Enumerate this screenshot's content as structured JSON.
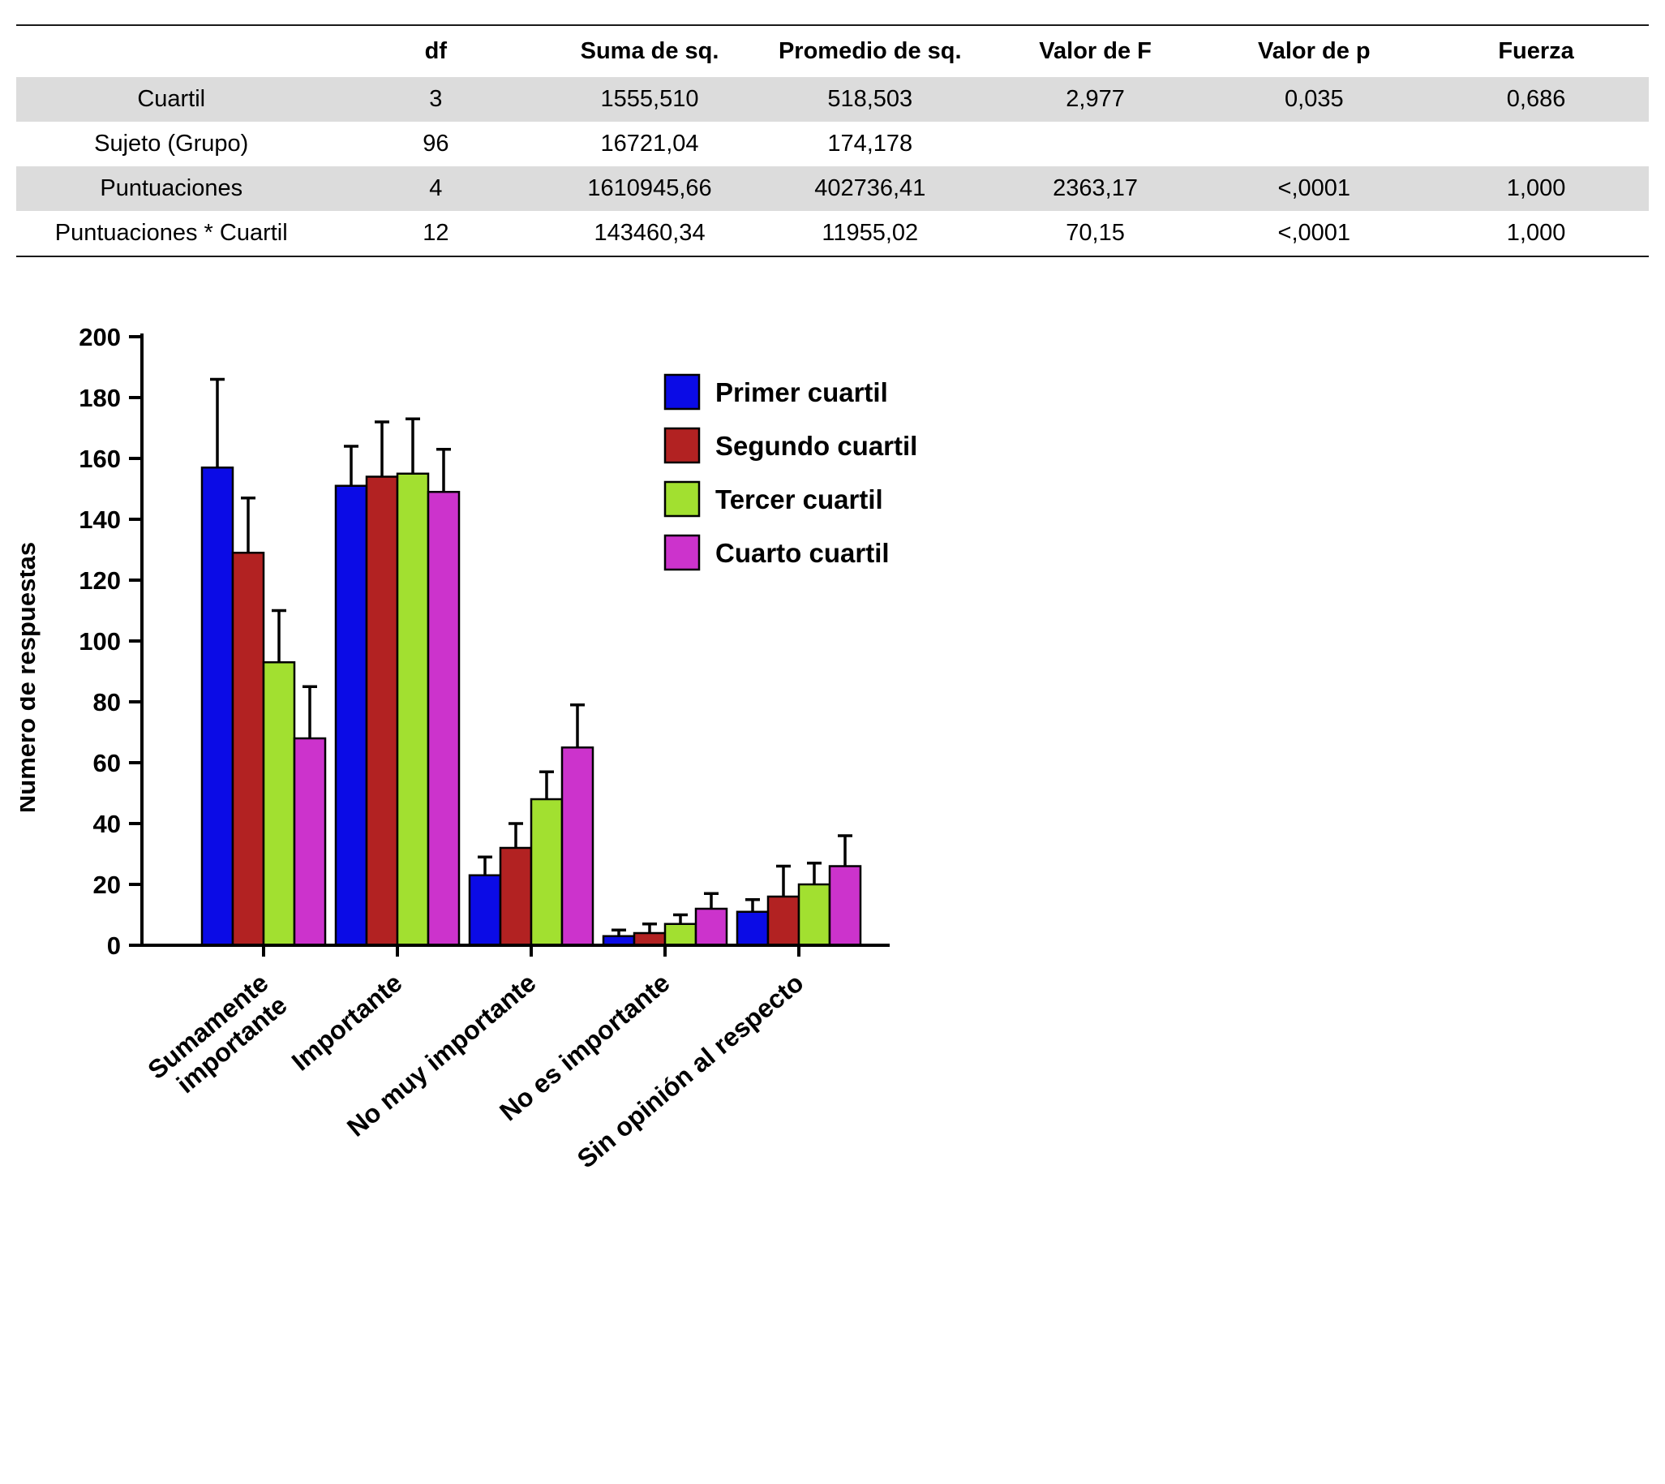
{
  "chart_data": [
    {
      "type": "table",
      "headers": [
        "",
        "df",
        "Suma de sq.",
        "Promedio de sq.",
        "Valor de F",
        "Valor de p",
        "Fuerza"
      ],
      "rows": [
        [
          "Cuartil",
          "3",
          "1555,510",
          "518,503",
          "2,977",
          "0,035",
          "0,686"
        ],
        [
          "Sujeto (Grupo)",
          "96",
          "16721,04",
          "174,178",
          "",
          "",
          ""
        ],
        [
          "Puntuaciones",
          "4",
          "1610945,66",
          "402736,41",
          "2363,17",
          "<,0001",
          "1,000"
        ],
        [
          "Puntuaciones * Cuartil",
          "12",
          "143460,34",
          "11955,02",
          "70,15",
          "<,0001",
          "1,000"
        ]
      ],
      "shaded_rows": [
        0,
        2
      ],
      "shade_color": "#DCDCDC"
    },
    {
      "type": "bar",
      "title": "",
      "xlabel": "",
      "ylabel": "Número de respuestas",
      "ylim": [
        0,
        200
      ],
      "ytick_step": 20,
      "grid": false,
      "legend_position": "top-right",
      "categories": [
        "Sumamente\nimportante",
        "Importante",
        "No muy importante",
        "No es importante",
        "Sin opinión al respecto"
      ],
      "series": [
        {
          "name": "Primer cuartil",
          "color": "#0B0BE6",
          "values": [
            157,
            151,
            23,
            3,
            11
          ],
          "errors_up": [
            29,
            13,
            6,
            2,
            4
          ]
        },
        {
          "name": "Segundo cuartil",
          "color": "#B22222",
          "values": [
            129,
            154,
            32,
            4,
            16
          ],
          "errors_up": [
            18,
            18,
            8,
            3,
            10
          ]
        },
        {
          "name": "Tercer cuartil",
          "color": "#A2E030",
          "values": [
            93,
            155,
            48,
            7,
            20
          ],
          "errors_up": [
            17,
            18,
            9,
            3,
            7
          ]
        },
        {
          "name": "Cuarto cuartil",
          "color": "#CC33CC",
          "values": [
            68,
            149,
            65,
            12,
            26
          ],
          "errors_up": [
            17,
            14,
            14,
            5,
            10
          ]
        }
      ]
    }
  ]
}
